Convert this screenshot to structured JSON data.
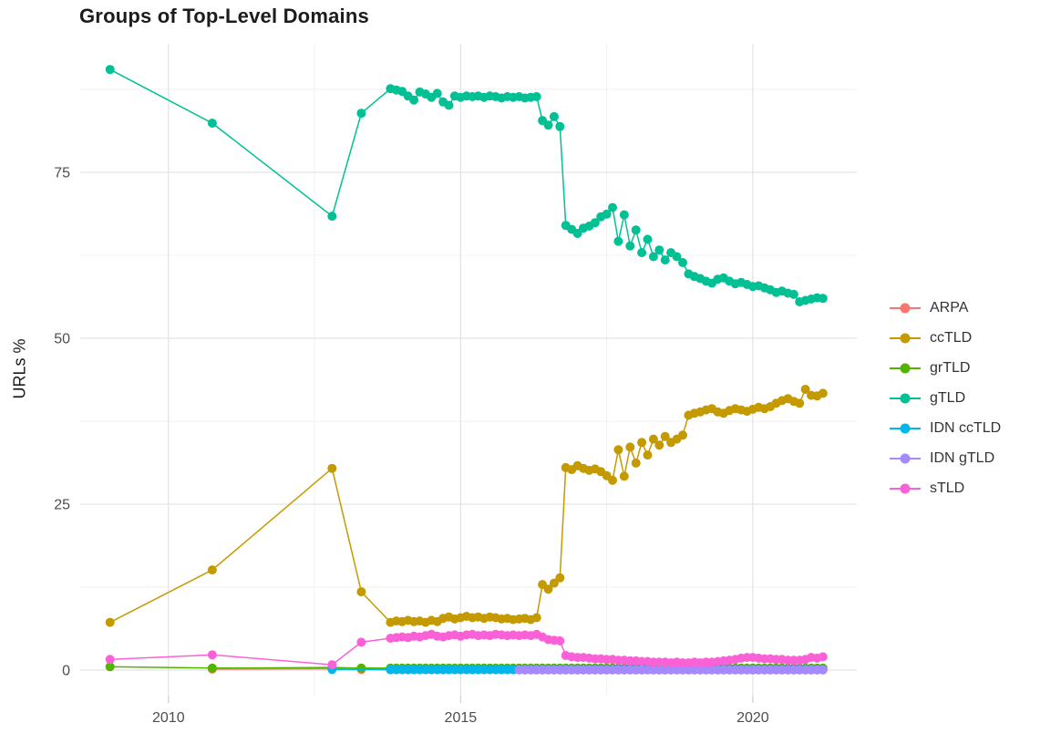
{
  "chart_data": {
    "type": "scatter-line",
    "title": "Groups of Top-Level Domains",
    "xlabel": "",
    "ylabel": "URLs %",
    "grid": true,
    "legend_position": "right",
    "axes": {
      "x_range": [
        2008.49,
        2021.78
      ],
      "y_range": [
        -3.85,
        94.37
      ],
      "x_ticks": [
        2010,
        2015,
        2020
      ],
      "x_tick_labels": [
        "2010",
        "2015",
        "2020"
      ],
      "x_minor_ticks": [
        2012.5,
        2017.5
      ],
      "y_ticks": [
        0,
        25,
        50,
        75
      ],
      "y_tick_labels": [
        "0",
        "25",
        "50",
        "75"
      ],
      "y_minor_ticks": [
        12.5,
        37.5,
        62.5,
        87.5
      ]
    },
    "style": {
      "grid_major_color": "#e4e4e4",
      "grid_minor_color": "#f1f1f1",
      "axis_tick_color": "#d4d4d4",
      "tick_text_color": "#4d4d4d"
    },
    "dense_x": {
      "start": 2013.8,
      "end": 2021.2,
      "step": 0.1
    },
    "series": [
      {
        "name": "ARPA",
        "color": "#F8766D",
        "points": [
          [
            2010.75,
            0.15
          ],
          [
            2012.8,
            0.2
          ],
          [
            2013.3,
            0.1
          ]
        ],
        "dense_fill": 0.05
      },
      {
        "name": "ccTLD",
        "color": "#C49A00",
        "points": [
          [
            2009.0,
            7.2
          ],
          [
            2010.75,
            15.1
          ],
          [
            2012.8,
            30.4
          ],
          [
            2013.3,
            11.8
          ]
        ],
        "dense_values": [
          7.2,
          7.4,
          7.3,
          7.5,
          7.3,
          7.4,
          7.2,
          7.5,
          7.3,
          7.8,
          8.0,
          7.7,
          7.9,
          8.1,
          7.9,
          8.0,
          7.8,
          8.0,
          7.9,
          7.7,
          7.8,
          7.6,
          7.7,
          7.8,
          7.6,
          7.9,
          12.9,
          12.2,
          13.1,
          13.9,
          30.5,
          30.2,
          30.8,
          30.4,
          30.1,
          30.3,
          29.9,
          29.3,
          28.6,
          33.2,
          29.2,
          33.6,
          31.2,
          34.3,
          32.4,
          34.8,
          33.9,
          35.2,
          34.3,
          34.8,
          35.4,
          38.4,
          38.7,
          38.9,
          39.2,
          39.4,
          38.9,
          38.7,
          39.1,
          39.4,
          39.2,
          39.0,
          39.3,
          39.6,
          39.4,
          39.7,
          40.2,
          40.6,
          40.9,
          40.5,
          40.2,
          42.3,
          41.4,
          41.3,
          41.7
        ]
      },
      {
        "name": "grTLD",
        "color": "#53B400",
        "points": [
          [
            2009.0,
            0.5
          ],
          [
            2010.75,
            0.3
          ],
          [
            2012.8,
            0.4
          ],
          [
            2013.3,
            0.3
          ]
        ],
        "dense_fill": 0.3
      },
      {
        "name": "gTLD",
        "color": "#00C094",
        "points": [
          [
            2009.0,
            90.5
          ],
          [
            2010.75,
            82.4
          ],
          [
            2012.8,
            68.4
          ],
          [
            2013.3,
            83.9
          ]
        ],
        "dense_values": [
          87.6,
          87.4,
          87.2,
          86.5,
          85.9,
          87.1,
          86.8,
          86.3,
          86.9,
          85.6,
          85.1,
          86.5,
          86.3,
          86.5,
          86.4,
          86.5,
          86.3,
          86.5,
          86.4,
          86.2,
          86.4,
          86.3,
          86.4,
          86.2,
          86.3,
          86.4,
          82.8,
          82.1,
          83.4,
          81.9,
          67.0,
          66.4,
          65.8,
          66.6,
          66.9,
          67.4,
          68.3,
          68.7,
          69.7,
          64.6,
          68.6,
          63.9,
          66.3,
          62.9,
          64.9,
          62.3,
          63.3,
          61.8,
          62.9,
          62.3,
          61.4,
          59.7,
          59.3,
          59.0,
          58.6,
          58.3,
          58.9,
          59.1,
          58.6,
          58.2,
          58.4,
          58.1,
          57.8,
          57.9,
          57.6,
          57.3,
          56.9,
          57.1,
          56.8,
          56.6,
          55.5,
          55.7,
          55.9,
          56.1,
          56.0
        ]
      },
      {
        "name": "IDN ccTLD",
        "color": "#00B6EB",
        "points": [
          [
            2012.8,
            0.1
          ]
        ],
        "dense_fill": 0.08
      },
      {
        "name": "IDN gTLD",
        "color": "#A58AFF",
        "points": [],
        "dense_fill": 0.02,
        "dense_from": 2016.0
      },
      {
        "name": "sTLD",
        "color": "#FB61D7",
        "points": [
          [
            2009.0,
            1.6
          ],
          [
            2010.75,
            2.3
          ],
          [
            2012.8,
            0.8
          ],
          [
            2013.3,
            4.2
          ]
        ],
        "dense_values": [
          4.8,
          4.9,
          5.0,
          4.9,
          5.1,
          5.0,
          5.2,
          5.4,
          5.1,
          5.0,
          5.2,
          5.3,
          5.1,
          5.3,
          5.4,
          5.2,
          5.3,
          5.2,
          5.4,
          5.3,
          5.2,
          5.3,
          5.2,
          5.3,
          5.2,
          5.4,
          5.0,
          4.6,
          4.5,
          4.4,
          2.2,
          2.0,
          1.9,
          1.9,
          1.8,
          1.7,
          1.7,
          1.6,
          1.6,
          1.5,
          1.5,
          1.4,
          1.4,
          1.3,
          1.3,
          1.2,
          1.2,
          1.2,
          1.1,
          1.2,
          1.1,
          1.1,
          1.2,
          1.1,
          1.2,
          1.2,
          1.3,
          1.4,
          1.5,
          1.6,
          1.8,
          1.9,
          1.9,
          1.8,
          1.7,
          1.7,
          1.6,
          1.6,
          1.5,
          1.5,
          1.5,
          1.6,
          1.9,
          1.8,
          2.0
        ]
      }
    ]
  }
}
